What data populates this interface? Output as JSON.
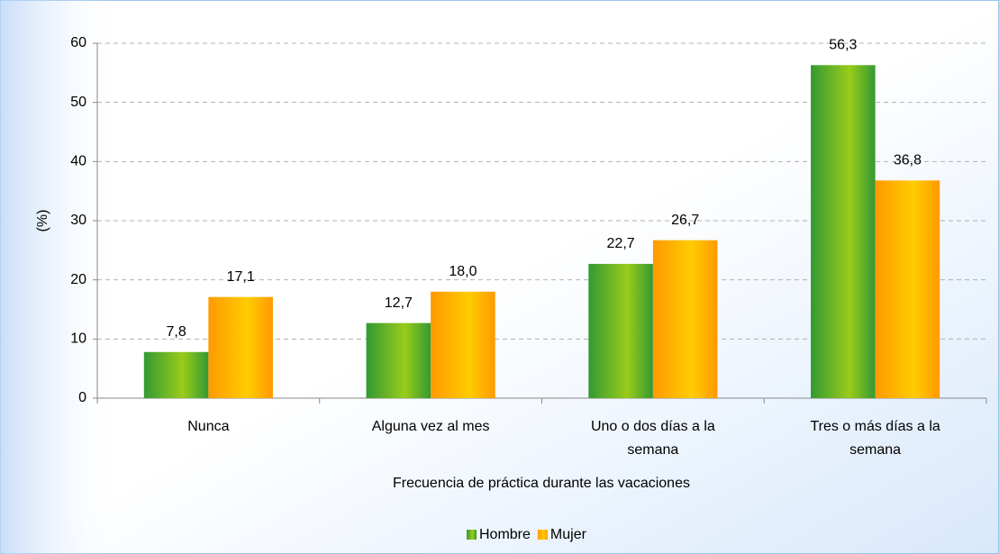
{
  "chart_data": {
    "type": "bar",
    "categories": [
      "Nunca",
      "Alguna vez al mes",
      "Uno o dos días a la semana",
      "Tres o más días a la semana"
    ],
    "series": [
      {
        "name": "Hombre",
        "color": "#339933",
        "values": [
          7.8,
          12.7,
          22.7,
          56.3
        ],
        "value_labels": [
          "7,8",
          "12,7",
          "22,7",
          "56,3"
        ]
      },
      {
        "name": "Mujer",
        "color": "#ff9900",
        "values": [
          17.1,
          18.0,
          26.7,
          36.8
        ],
        "value_labels": [
          "17,1",
          "18,0",
          "26,7",
          "36,8"
        ]
      }
    ],
    "xlabel": "Frecuencia de práctica durante las vacaciones",
    "ylabel": "(%)",
    "ylim": [
      0,
      60
    ],
    "yticks": [
      0,
      10,
      20,
      30,
      40,
      50,
      60
    ],
    "grid": true,
    "legend": "bottom"
  }
}
